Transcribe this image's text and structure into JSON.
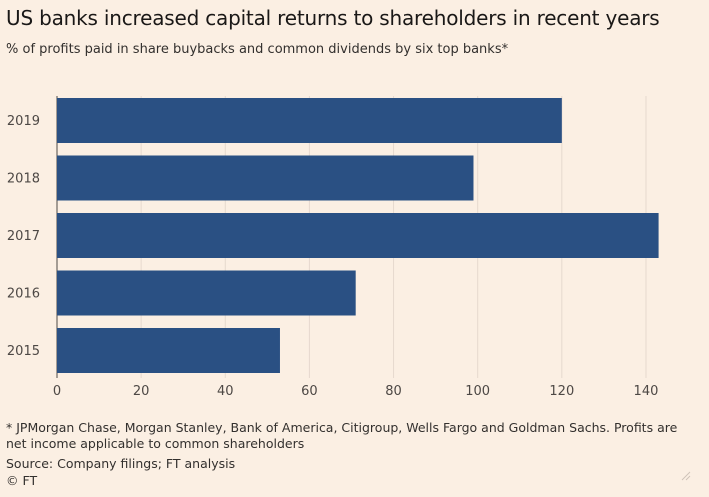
{
  "title": "US banks increased capital returns to shareholders in recent years",
  "subtitle": "% of profits paid in share buybacks and common dividends by six top banks*",
  "footnote": "* JPMorgan Chase, Morgan Stanley, Bank of America, Citigroup, Wells Fargo and Goldman Sachs. Profits are net income applicable to common shareholders",
  "source": "Source: Company filings; FT analysis",
  "credit": "© FT",
  "colors": {
    "bar": "#2a5083",
    "background": "#fbefe3",
    "grid": "#e6d9ce",
    "axis": "#4d4845"
  },
  "chart_data": {
    "type": "bar",
    "orientation": "horizontal",
    "categories": [
      "2019",
      "2018",
      "2017",
      "2016",
      "2015"
    ],
    "values": [
      120,
      99,
      143,
      71,
      53
    ],
    "xlim": [
      0,
      145
    ],
    "xticks": [
      0,
      20,
      40,
      60,
      80,
      100,
      120,
      140
    ],
    "grid": true
  }
}
